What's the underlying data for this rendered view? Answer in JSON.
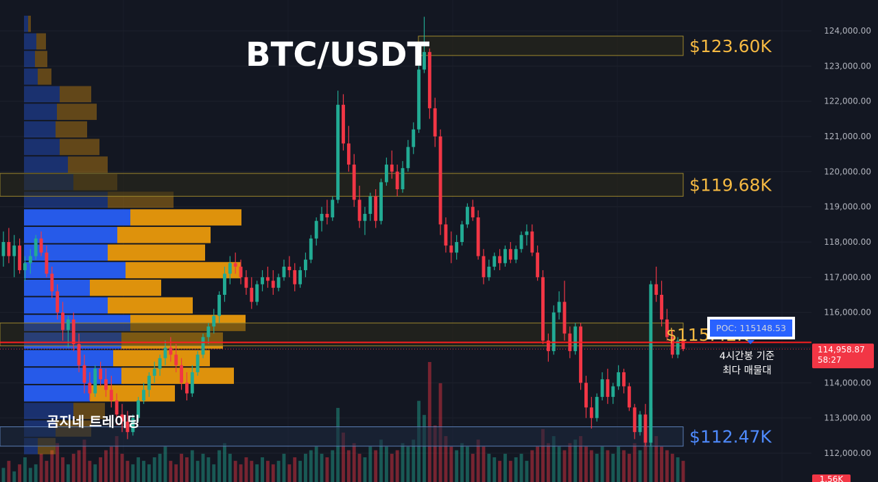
{
  "chart_data": {
    "type": "candlestick",
    "title": "BTC/USDT",
    "brand": "곰지네 트레이딩",
    "ylim": [
      111800,
      124450
    ],
    "y_ticks": [
      124000,
      123000,
      122000,
      121000,
      120000,
      119000,
      118000,
      117000,
      116000,
      115000,
      114000,
      113000,
      112000
    ],
    "y_tick_labels": [
      "124,000.00",
      "123,000.00",
      "122,000.00",
      "121,000.00",
      "120,000.00",
      "119,000.00",
      "118,000.00",
      "117,000.00",
      "116,000.00",
      "115,000.00",
      "114,000.00",
      "113,000.00",
      "112,000.00"
    ],
    "current_price": 114958.87,
    "current_price_label": "114,958.87",
    "countdown_label": "58:27",
    "volume_label": "1.56K",
    "poc": {
      "price": 115148.53,
      "label": "POC: 115148.53",
      "note_line1": "4시간봉 기준",
      "note_line2": "최다 매물대"
    },
    "levels": [
      {
        "name": "top",
        "label": "$123.60K",
        "price_low": 123300,
        "price_high": 123850,
        "color": "#f5b942"
      },
      {
        "name": "upper",
        "label": "$119.68K",
        "price_low": 119300,
        "price_high": 119950,
        "color": "#f5b942"
      },
      {
        "name": "mid",
        "label": "$115.42K",
        "price_low": 115050,
        "price_high": 115700,
        "color": "#f5b942"
      },
      {
        "name": "low",
        "label": "$112.47K",
        "price_low": 112200,
        "price_high": 112750,
        "color": "#4f8bff"
      }
    ],
    "profile_rows": [
      {
        "p": 124200,
        "buy": 6,
        "sell": 4,
        "va": false
      },
      {
        "p": 123700,
        "buy": 18,
        "sell": 14,
        "va": false
      },
      {
        "p": 123200,
        "buy": 16,
        "sell": 18,
        "va": false
      },
      {
        "p": 122700,
        "buy": 20,
        "sell": 20,
        "va": false
      },
      {
        "p": 122200,
        "buy": 52,
        "sell": 46,
        "va": false
      },
      {
        "p": 121700,
        "buy": 48,
        "sell": 58,
        "va": false
      },
      {
        "p": 121200,
        "buy": 46,
        "sell": 46,
        "va": false
      },
      {
        "p": 120700,
        "buy": 52,
        "sell": 58,
        "va": false
      },
      {
        "p": 120200,
        "buy": 64,
        "sell": 58,
        "va": false
      },
      {
        "p": 119700,
        "buy": 72,
        "sell": 64,
        "va": false
      },
      {
        "p": 119200,
        "buy": 122,
        "sell": 96,
        "va": false
      },
      {
        "p": 118700,
        "buy": 155,
        "sell": 162,
        "va": true
      },
      {
        "p": 118200,
        "buy": 136,
        "sell": 136,
        "va": true
      },
      {
        "p": 117700,
        "buy": 122,
        "sell": 142,
        "va": true
      },
      {
        "p": 117200,
        "buy": 148,
        "sell": 168,
        "va": true
      },
      {
        "p": 116700,
        "buy": 96,
        "sell": 104,
        "va": true
      },
      {
        "p": 116200,
        "buy": 122,
        "sell": 124,
        "va": true
      },
      {
        "p": 115700,
        "buy": 155,
        "sell": 168,
        "va": true
      },
      {
        "p": 115200,
        "buy": 142,
        "sell": 148,
        "va": true
      },
      {
        "p": 114700,
        "buy": 130,
        "sell": 141,
        "va": true
      },
      {
        "p": 114200,
        "buy": 142,
        "sell": 164,
        "va": true
      },
      {
        "p": 113700,
        "buy": 96,
        "sell": 124,
        "va": true
      },
      {
        "p": 113200,
        "buy": 72,
        "sell": 46,
        "va": false
      },
      {
        "p": 112700,
        "buy": 46,
        "sell": 52,
        "va": false
      },
      {
        "p": 112200,
        "buy": 20,
        "sell": 26,
        "va": false
      }
    ],
    "candles_ohlc": [
      [
        117600,
        118300,
        117300,
        118000
      ],
      [
        118000,
        118400,
        117400,
        117600
      ],
      [
        117600,
        118200,
        117000,
        117900
      ],
      [
        117900,
        118100,
        117100,
        117200
      ],
      [
        117200,
        117600,
        116900,
        117400
      ],
      [
        117400,
        117800,
        117100,
        117600
      ],
      [
        117600,
        118200,
        117500,
        118100
      ],
      [
        118100,
        118300,
        117600,
        117700
      ],
      [
        117700,
        117900,
        117000,
        117100
      ],
      [
        117100,
        117300,
        116400,
        116600
      ],
      [
        116600,
        116800,
        115800,
        116000
      ],
      [
        116000,
        116300,
        115200,
        115500
      ],
      [
        115500,
        115900,
        115000,
        115800
      ],
      [
        115800,
        116000,
        114900,
        115100
      ],
      [
        115100,
        115400,
        114300,
        114500
      ],
      [
        114500,
        114800,
        113700,
        114000
      ],
      [
        114000,
        114300,
        113500,
        113700
      ],
      [
        113700,
        114500,
        113600,
        114400
      ],
      [
        114400,
        114600,
        113900,
        114100
      ],
      [
        114100,
        114400,
        113600,
        113800
      ],
      [
        113800,
        114200,
        113300,
        113500
      ],
      [
        113500,
        113700,
        112800,
        113100
      ],
      [
        113100,
        113400,
        112600,
        112900
      ],
      [
        112900,
        113200,
        112400,
        112600
      ],
      [
        112600,
        113100,
        112500,
        113000
      ],
      [
        113000,
        113600,
        112900,
        113500
      ],
      [
        113500,
        114000,
        113400,
        113800
      ],
      [
        113800,
        114300,
        113600,
        114200
      ],
      [
        114200,
        114600,
        114000,
        114400
      ],
      [
        114400,
        114800,
        114200,
        114700
      ],
      [
        114700,
        115200,
        114500,
        115000
      ],
      [
        115000,
        115300,
        114600,
        114800
      ],
      [
        114800,
        115100,
        114300,
        114500
      ],
      [
        114500,
        114700,
        113800,
        114000
      ],
      [
        114000,
        114300,
        113500,
        113700
      ],
      [
        113700,
        114500,
        113600,
        114300
      ],
      [
        114300,
        114900,
        114200,
        114800
      ],
      [
        114800,
        115400,
        114700,
        115300
      ],
      [
        115300,
        115700,
        115100,
        115600
      ],
      [
        115600,
        116100,
        115400,
        115900
      ],
      [
        115900,
        116600,
        115700,
        116500
      ],
      [
        116500,
        117300,
        116300,
        117100
      ],
      [
        117100,
        117600,
        116800,
        117400
      ],
      [
        117400,
        117700,
        117100,
        117300
      ],
      [
        117300,
        117500,
        116800,
        117000
      ],
      [
        117000,
        117200,
        116500,
        116700
      ],
      [
        116700,
        117000,
        116100,
        116300
      ],
      [
        116300,
        116900,
        116200,
        116800
      ],
      [
        116800,
        117200,
        116600,
        117000
      ],
      [
        117000,
        117300,
        116700,
        116900
      ],
      [
        116900,
        117200,
        116500,
        116700
      ],
      [
        116700,
        117100,
        116600,
        117000
      ],
      [
        117000,
        117500,
        116900,
        117300
      ],
      [
        117300,
        117600,
        117000,
        117200
      ],
      [
        117200,
        117400,
        116600,
        116800
      ],
      [
        116800,
        117300,
        116700,
        117200
      ],
      [
        117200,
        117700,
        117000,
        117500
      ],
      [
        117500,
        118200,
        117400,
        118100
      ],
      [
        118100,
        118700,
        117900,
        118600
      ],
      [
        118600,
        119000,
        118300,
        118800
      ],
      [
        118800,
        119200,
        118500,
        118700
      ],
      [
        118700,
        119300,
        118600,
        119200
      ],
      [
        119200,
        122300,
        119100,
        121900
      ],
      [
        121900,
        122200,
        120600,
        120800
      ],
      [
        120800,
        121300,
        120000,
        120200
      ],
      [
        120200,
        120500,
        119000,
        119200
      ],
      [
        119200,
        119600,
        118400,
        118600
      ],
      [
        118600,
        119000,
        118200,
        118800
      ],
      [
        118800,
        119400,
        118600,
        119300
      ],
      [
        119300,
        119500,
        118400,
        118600
      ],
      [
        118600,
        119800,
        118500,
        119700
      ],
      [
        119700,
        120400,
        119600,
        120200
      ],
      [
        120200,
        120600,
        119800,
        120000
      ],
      [
        120000,
        120200,
        119300,
        119500
      ],
      [
        119500,
        120300,
        119400,
        120100
      ],
      [
        120100,
        120900,
        120000,
        120700
      ],
      [
        120700,
        121400,
        120500,
        121200
      ],
      [
        121200,
        123300,
        121100,
        122900
      ],
      [
        122900,
        124400,
        122800,
        123400
      ],
      [
        123400,
        123500,
        121500,
        121800
      ],
      [
        121800,
        122100,
        120700,
        121000
      ],
      [
        121000,
        121200,
        118200,
        118500
      ],
      [
        118500,
        118700,
        117700,
        117900
      ],
      [
        117900,
        118300,
        117400,
        117700
      ],
      [
        117700,
        118200,
        117500,
        118000
      ],
      [
        118000,
        118600,
        117900,
        118500
      ],
      [
        118500,
        119100,
        118400,
        119000
      ],
      [
        119000,
        119200,
        118600,
        118700
      ],
      [
        118700,
        118900,
        117500,
        117600
      ],
      [
        117600,
        117800,
        116800,
        117000
      ],
      [
        117000,
        117500,
        116900,
        117300
      ],
      [
        117300,
        117700,
        117200,
        117600
      ],
      [
        117600,
        117800,
        117200,
        117400
      ],
      [
        117400,
        117900,
        117300,
        117800
      ],
      [
        117800,
        118000,
        117400,
        117500
      ],
      [
        117500,
        117900,
        117400,
        117800
      ],
      [
        117800,
        118300,
        117700,
        118200
      ],
      [
        118200,
        118500,
        117900,
        118300
      ],
      [
        118300,
        118500,
        117600,
        117700
      ],
      [
        117700,
        117900,
        116900,
        117000
      ],
      [
        117000,
        117200,
        115100,
        115200
      ],
      [
        115200,
        115400,
        114600,
        114900
      ],
      [
        114900,
        116200,
        114800,
        116000
      ],
      [
        116000,
        116600,
        115800,
        116300
      ],
      [
        116300,
        116900,
        115200,
        115400
      ],
      [
        115400,
        115600,
        114700,
        114900
      ],
      [
        114900,
        115700,
        114800,
        115600
      ],
      [
        115600,
        115700,
        113800,
        114000
      ],
      [
        114000,
        114200,
        113000,
        113300
      ],
      [
        113300,
        113600,
        112700,
        113000
      ],
      [
        113000,
        113700,
        112900,
        113600
      ],
      [
        113600,
        114300,
        113500,
        114100
      ],
      [
        114100,
        114400,
        113400,
        113600
      ],
      [
        113600,
        114000,
        113400,
        113900
      ],
      [
        113900,
        114500,
        113800,
        114300
      ],
      [
        114300,
        114400,
        113700,
        113900
      ],
      [
        113900,
        114000,
        113200,
        113300
      ],
      [
        113300,
        113400,
        112400,
        112600
      ],
      [
        112600,
        113200,
        112500,
        113100
      ],
      [
        113100,
        113400,
        112200,
        112300
      ],
      [
        112300,
        116900,
        112200,
        116800
      ],
      [
        116800,
        117300,
        116300,
        116500
      ],
      [
        116500,
        116900,
        115600,
        115800
      ],
      [
        115800,
        116100,
        115200,
        115300
      ],
      [
        115300,
        115500,
        114700,
        114800
      ],
      [
        114800,
        115300,
        114700,
        115200
      ],
      [
        115200,
        115300,
        114900,
        114958.87
      ]
    ],
    "volumes": [
      0.4,
      0.6,
      0.3,
      0.5,
      0.7,
      0.4,
      0.5,
      0.8,
      0.6,
      0.9,
      1.1,
      0.7,
      0.5,
      0.8,
      0.9,
      1.2,
      0.6,
      0.5,
      0.7,
      0.9,
      1.0,
      1.3,
      0.8,
      0.6,
      0.5,
      0.7,
      0.6,
      0.5,
      0.7,
      0.8,
      1.0,
      0.6,
      0.5,
      0.8,
      0.7,
      0.9,
      0.6,
      0.8,
      0.7,
      0.5,
      0.9,
      1.1,
      0.8,
      0.6,
      0.5,
      0.7,
      0.6,
      0.5,
      0.7,
      0.6,
      0.5,
      0.6,
      0.8,
      0.5,
      0.7,
      0.6,
      0.8,
      0.9,
      1.0,
      0.8,
      0.7,
      0.9,
      2.1,
      1.4,
      0.9,
      1.1,
      0.8,
      0.7,
      1.0,
      0.9,
      1.2,
      1.0,
      0.8,
      0.9,
      1.1,
      1.0,
      1.2,
      2.3,
      1.9,
      3.4,
      1.6,
      2.8,
      1.3,
      1.0,
      0.9,
      1.1,
      1.0,
      0.8,
      1.2,
      1.0,
      0.8,
      0.7,
      0.6,
      0.8,
      0.6,
      0.7,
      0.8,
      0.6,
      0.9,
      1.0,
      1.5,
      1.1,
      1.3,
      1.0,
      0.9,
      1.1,
      1.2,
      1.3,
      1.0,
      0.9,
      0.8,
      1.0,
      0.9,
      0.8,
      1.0,
      0.9,
      0.8,
      1.1,
      0.9,
      1.2,
      2.1,
      1.3,
      1.0,
      0.9,
      0.8,
      0.7,
      0.6
    ]
  }
}
